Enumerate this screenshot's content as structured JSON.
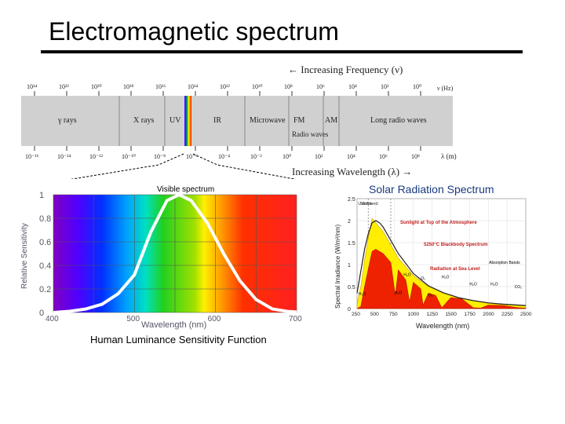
{
  "slide": {
    "title": "Electromagnetic spectrum",
    "caption": "Human Luminance Sensitivity Function"
  },
  "em_spectrum": {
    "freq_header": "← Increasing Frequency (ν)",
    "wave_header": "Increasing Wavelength (λ) →",
    "freq_ticks": [
      "10²⁴",
      "10²²",
      "10²⁰",
      "10¹⁸",
      "10¹⁶",
      "10¹⁴",
      "10¹²",
      "10¹⁰",
      "10⁸",
      "10⁶",
      "10⁴",
      "10²",
      "10⁰"
    ],
    "freq_unit": "ν (Hz)",
    "wave_ticks": [
      "10⁻¹⁶",
      "10⁻¹⁴",
      "10⁻¹²",
      "10⁻¹⁰",
      "10⁻⁸",
      "10⁻⁶",
      "10⁻⁴",
      "10⁻²",
      "10⁰",
      "10²",
      "10⁴",
      "10⁶",
      "10⁸"
    ],
    "wave_unit": "λ (m)",
    "bands": [
      "γ rays",
      "X rays",
      "UV",
      "IR",
      "Microwave",
      "FM",
      "AM",
      "Long radio waves"
    ],
    "radio_label": "Radio waves",
    "visible_label": "Visible spectrum"
  },
  "luminance_chart": {
    "chart_data": {
      "type": "line",
      "title": "",
      "xlabel": "Wavelength (nm)",
      "ylabel": "Relative Sensitivity",
      "x_ticks": [
        "400",
        "500",
        "600",
        "700"
      ],
      "y_ticks": [
        "1",
        "0.8",
        "0.6",
        "0.4",
        "0.2",
        "0"
      ],
      "xlim": [
        400,
        700
      ],
      "ylim": [
        0,
        1
      ],
      "x": [
        400,
        420,
        440,
        460,
        480,
        500,
        520,
        540,
        555,
        570,
        590,
        610,
        630,
        650,
        670,
        690,
        700
      ],
      "y": [
        0.0,
        0.01,
        0.03,
        0.07,
        0.16,
        0.32,
        0.68,
        0.95,
        1.0,
        0.95,
        0.76,
        0.5,
        0.27,
        0.11,
        0.03,
        0.008,
        0.004
      ]
    }
  },
  "solar_chart": {
    "chart_data": {
      "type": "area",
      "title": "Solar Radiation Spectrum",
      "xlabel": "Wavelength (nm)",
      "ylabel": "Spectral Irradiance (W/m²/nm)",
      "x_ticks": [
        "250",
        "500",
        "750",
        "1000",
        "1250",
        "1500",
        "1750",
        "2000",
        "2250",
        "2500"
      ],
      "y_ticks": [
        "0",
        "0.5",
        "1",
        "1.5",
        "2",
        "2.5"
      ],
      "xlim": [
        250,
        2500
      ],
      "ylim": [
        0,
        2.5
      ],
      "region_labels": [
        "UV",
        "Visible",
        "Infrared"
      ],
      "series": [
        {
          "name": "Sunlight at Top of the Atmosphere",
          "x": [
            250,
            300,
            350,
            400,
            450,
            500,
            550,
            600,
            700,
            800,
            1000,
            1200,
            1400,
            1600,
            1800,
            2000,
            2200,
            2500
          ],
          "y": [
            0.1,
            0.5,
            1.1,
            1.6,
            2.05,
            1.95,
            1.85,
            1.75,
            1.45,
            1.15,
            0.75,
            0.5,
            0.35,
            0.25,
            0.18,
            0.12,
            0.09,
            0.06
          ]
        },
        {
          "name": "5250°C Blackbody Spectrum",
          "x": [
            250,
            300,
            350,
            400,
            450,
            500,
            550,
            600,
            700,
            800,
            1000,
            1200,
            1400,
            1600,
            1800,
            2000,
            2200,
            2500
          ],
          "y": [
            0.35,
            0.85,
            1.35,
            1.7,
            1.95,
            2.0,
            1.95,
            1.85,
            1.55,
            1.25,
            0.8,
            0.52,
            0.36,
            0.25,
            0.18,
            0.13,
            0.1,
            0.07
          ]
        },
        {
          "name": "Radiation at Sea Level",
          "x": [
            250,
            300,
            350,
            400,
            450,
            500,
            550,
            600,
            700,
            760,
            800,
            900,
            950,
            1000,
            1100,
            1130,
            1200,
            1300,
            1380,
            1500,
            1650,
            1800,
            1900,
            2000,
            2200,
            2400,
            2500
          ],
          "y": [
            0,
            0.05,
            0.5,
            0.9,
            1.3,
            1.35,
            1.3,
            1.25,
            1.05,
            0.3,
            0.88,
            0.65,
            0.15,
            0.6,
            0.45,
            0.08,
            0.35,
            0.3,
            0.02,
            0.25,
            0.22,
            0.02,
            0.01,
            0.08,
            0.07,
            0.02,
            0.01
          ]
        }
      ],
      "annotations": [
        "Absorption Bands",
        "H₂O",
        "O₂",
        "H₂O",
        "H₂O",
        "H₂O",
        "CO₂",
        "H₂O",
        "O₃",
        "H₂O"
      ]
    }
  }
}
